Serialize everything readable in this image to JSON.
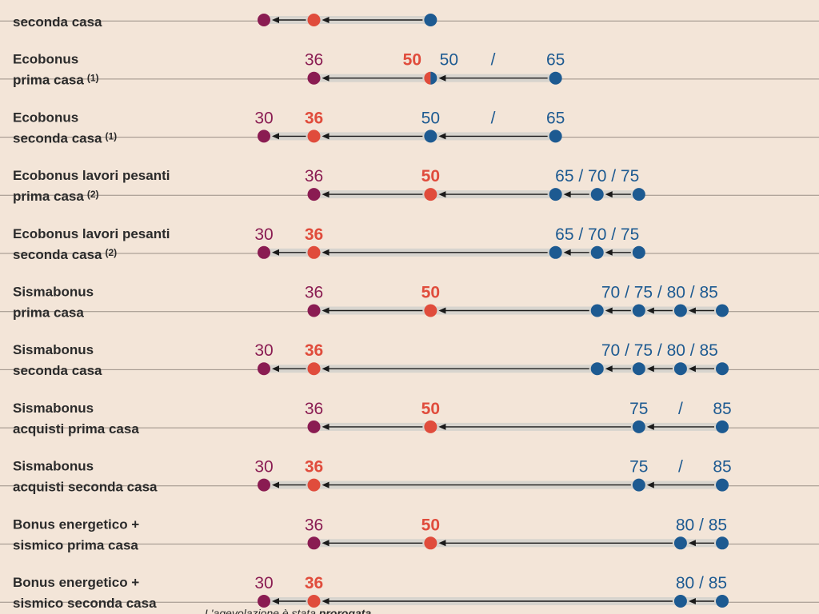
{
  "chart_data": {
    "type": "dot-arrow",
    "title": "",
    "unit": "%",
    "colors": {
      "purple": "#8a1c52",
      "red": "#e04c3c",
      "blue": "#1d5a91",
      "bar": "#d7d4ce",
      "divider": "#9a8f86",
      "text": "#2b2b2b"
    },
    "axis": {
      "min": 30,
      "max": 85,
      "ticks_shown": false
    },
    "rows": [
      {
        "label_line1": "",
        "label_line2": "seconda casa",
        "note": "",
        "values": [
          {
            "value": 30,
            "color": "purple",
            "show_label": false
          },
          {
            "value": 36,
            "color": "red",
            "show_label": false
          },
          {
            "value": 50,
            "color": "blue",
            "show_label": false
          }
        ],
        "value_labels": []
      },
      {
        "label_line1": "Ecobonus",
        "label_line2": "prima casa",
        "note": "(1)",
        "values": [
          {
            "value": 36,
            "color": "purple"
          },
          {
            "value": 50,
            "color": "red-blue"
          },
          {
            "value": 65,
            "color": "blue"
          }
        ],
        "value_labels": [
          {
            "text": "36",
            "value": 36,
            "color": "purple"
          },
          {
            "text": "50",
            "value": 50,
            "color": "red",
            "offset": "left"
          },
          {
            "text": "50",
            "value": 50,
            "color": "blue",
            "offset": "right"
          },
          {
            "text": "/",
            "value": 57.5,
            "color": "blue"
          },
          {
            "text": "65",
            "value": 65,
            "color": "blue"
          }
        ]
      },
      {
        "label_line1": "Ecobonus",
        "label_line2": "seconda casa",
        "note": "(1)",
        "values": [
          {
            "value": 30,
            "color": "purple"
          },
          {
            "value": 36,
            "color": "red"
          },
          {
            "value": 50,
            "color": "blue"
          },
          {
            "value": 65,
            "color": "blue"
          }
        ],
        "value_labels": [
          {
            "text": "30",
            "value": 30,
            "color": "purple"
          },
          {
            "text": "36",
            "value": 36,
            "color": "red"
          },
          {
            "text": "50",
            "value": 50,
            "color": "blue"
          },
          {
            "text": "/",
            "value": 57.5,
            "color": "blue"
          },
          {
            "text": "65",
            "value": 65,
            "color": "blue"
          }
        ]
      },
      {
        "label_line1": "Ecobonus lavori pesanti",
        "label_line2": "prima casa",
        "note": "(2)",
        "values": [
          {
            "value": 36,
            "color": "purple"
          },
          {
            "value": 50,
            "color": "red"
          },
          {
            "value": 65,
            "color": "blue"
          },
          {
            "value": 70,
            "color": "blue"
          },
          {
            "value": 75,
            "color": "blue"
          }
        ],
        "value_labels": [
          {
            "text": "36",
            "value": 36,
            "color": "purple"
          },
          {
            "text": "50",
            "value": 50,
            "color": "red"
          },
          {
            "text": "65 / 70 / 75",
            "value": 70,
            "color": "blue"
          }
        ]
      },
      {
        "label_line1": "Ecobonus lavori pesanti",
        "label_line2": "seconda casa",
        "note": "(2)",
        "values": [
          {
            "value": 30,
            "color": "purple"
          },
          {
            "value": 36,
            "color": "red"
          },
          {
            "value": 65,
            "color": "blue"
          },
          {
            "value": 70,
            "color": "blue"
          },
          {
            "value": 75,
            "color": "blue"
          }
        ],
        "value_labels": [
          {
            "text": "30",
            "value": 30,
            "color": "purple"
          },
          {
            "text": "36",
            "value": 36,
            "color": "red"
          },
          {
            "text": "65 / 70 / 75",
            "value": 70,
            "color": "blue"
          }
        ]
      },
      {
        "label_line1": "Sismabonus",
        "label_line2": "prima casa",
        "note": "",
        "values": [
          {
            "value": 36,
            "color": "purple"
          },
          {
            "value": 50,
            "color": "red"
          },
          {
            "value": 70,
            "color": "blue"
          },
          {
            "value": 75,
            "color": "blue"
          },
          {
            "value": 80,
            "color": "blue"
          },
          {
            "value": 85,
            "color": "blue"
          }
        ],
        "value_labels": [
          {
            "text": "36",
            "value": 36,
            "color": "purple"
          },
          {
            "text": "50",
            "value": 50,
            "color": "red"
          },
          {
            "text": "70 / 75 / 80 / 85",
            "value": 77.5,
            "color": "blue"
          }
        ]
      },
      {
        "label_line1": "Sismabonus",
        "label_line2": "seconda casa",
        "note": "",
        "values": [
          {
            "value": 30,
            "color": "purple"
          },
          {
            "value": 36,
            "color": "red"
          },
          {
            "value": 70,
            "color": "blue"
          },
          {
            "value": 75,
            "color": "blue"
          },
          {
            "value": 80,
            "color": "blue"
          },
          {
            "value": 85,
            "color": "blue"
          }
        ],
        "value_labels": [
          {
            "text": "30",
            "value": 30,
            "color": "purple"
          },
          {
            "text": "36",
            "value": 36,
            "color": "red"
          },
          {
            "text": "70 / 75 / 80 / 85",
            "value": 77.5,
            "color": "blue"
          }
        ]
      },
      {
        "label_line1": "Sismabonus",
        "label_line2": "acquisti prima casa",
        "note": "",
        "values": [
          {
            "value": 36,
            "color": "purple"
          },
          {
            "value": 50,
            "color": "red"
          },
          {
            "value": 75,
            "color": "blue"
          },
          {
            "value": 85,
            "color": "blue"
          }
        ],
        "value_labels": [
          {
            "text": "36",
            "value": 36,
            "color": "purple"
          },
          {
            "text": "50",
            "value": 50,
            "color": "red"
          },
          {
            "text": "75",
            "value": 75,
            "color": "blue"
          },
          {
            "text": "/",
            "value": 80,
            "color": "blue"
          },
          {
            "text": "85",
            "value": 85,
            "color": "blue"
          }
        ]
      },
      {
        "label_line1": "Sismabonus",
        "label_line2": "acquisti seconda casa",
        "note": "",
        "values": [
          {
            "value": 30,
            "color": "purple"
          },
          {
            "value": 36,
            "color": "red"
          },
          {
            "value": 75,
            "color": "blue"
          },
          {
            "value": 85,
            "color": "blue"
          }
        ],
        "value_labels": [
          {
            "text": "30",
            "value": 30,
            "color": "purple"
          },
          {
            "text": "36",
            "value": 36,
            "color": "red"
          },
          {
            "text": "75",
            "value": 75,
            "color": "blue"
          },
          {
            "text": "/",
            "value": 80,
            "color": "blue"
          },
          {
            "text": "85",
            "value": 85,
            "color": "blue"
          }
        ]
      },
      {
        "label_line1": "Bonus energetico +",
        "label_line2": "sismico prima casa",
        "note": "",
        "values": [
          {
            "value": 36,
            "color": "purple"
          },
          {
            "value": 50,
            "color": "red"
          },
          {
            "value": 80,
            "color": "blue"
          },
          {
            "value": 85,
            "color": "blue"
          }
        ],
        "value_labels": [
          {
            "text": "36",
            "value": 36,
            "color": "purple"
          },
          {
            "text": "50",
            "value": 50,
            "color": "red"
          },
          {
            "text": "80 / 85",
            "value": 82.5,
            "color": "blue"
          }
        ]
      },
      {
        "label_line1": "Bonus energetico +",
        "label_line2": "sismico seconda casa",
        "note": "",
        "values": [
          {
            "value": 30,
            "color": "purple"
          },
          {
            "value": 36,
            "color": "red"
          },
          {
            "value": 80,
            "color": "blue"
          },
          {
            "value": 85,
            "color": "blue"
          }
        ],
        "value_labels": [
          {
            "text": "30",
            "value": 30,
            "color": "purple"
          },
          {
            "text": "36",
            "value": 36,
            "color": "red"
          },
          {
            "text": "80 / 85",
            "value": 82.5,
            "color": "blue"
          }
        ]
      }
    ],
    "footer": {
      "text_normal": "L'agevolazione è stata ",
      "text_bold": "prorogata"
    }
  }
}
